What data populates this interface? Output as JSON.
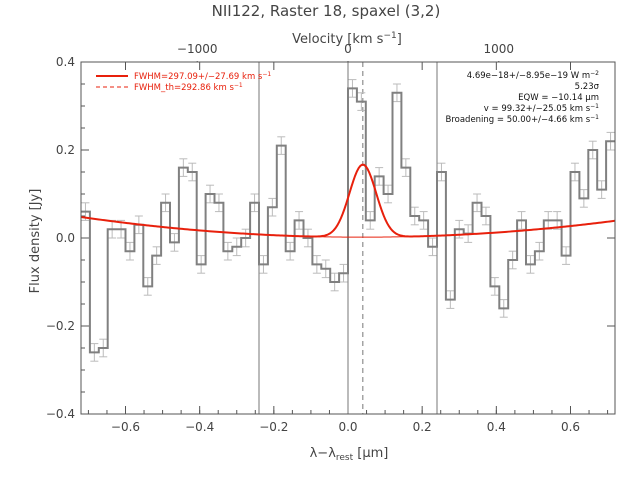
{
  "chart_data": {
    "type": "line",
    "title": "NII122, Raster 18, spaxel (3,2)",
    "xlabel": "λ-λ_rest [μm]",
    "ylabel": "Flux density [Jy]",
    "top_axis_label": "Velocity [km s^-1]",
    "xlim": [
      -0.72,
      0.72
    ],
    "ylim": [
      -0.4,
      0.4
    ],
    "x_ticks": [
      -0.6,
      -0.4,
      -0.2,
      0.0,
      0.2,
      0.4,
      0.6
    ],
    "x_tick_labels": [
      "−0.6",
      "−0.4",
      "−0.2",
      "0.0",
      "0.2",
      "0.4",
      "0.6"
    ],
    "y_ticks": [
      -0.4,
      -0.2,
      0.0,
      0.2,
      0.4
    ],
    "y_tick_labels": [
      "−0.4",
      "−0.2",
      "0.0",
      "0.2",
      "0.4"
    ],
    "top_ticks": [
      -1000,
      0,
      1000
    ],
    "top_tick_labels": [
      "−1000",
      "0",
      "1000"
    ],
    "vertical_lines_solid": [
      -0.24,
      0.0,
      0.24
    ],
    "vertical_line_dashed": 0.04,
    "legend": {
      "position": "top-left",
      "items": [
        {
          "label": "FWHM=297.09+/−27.69 km s^-1",
          "style": "solid"
        },
        {
          "label": "FWHM_th=292.86 km s^-1",
          "style": "dashed"
        }
      ]
    },
    "annotations": [
      "4.69e−18+/−8.95e−19 W m^-2",
      "5.23σ",
      "EQW = −10.14 μm",
      "v = 99.32+/−25.05 km s^-1",
      "Broadening = 50.00+/−4.66 km s^-1"
    ],
    "spectrum": {
      "x": [
        -0.72,
        -0.696,
        -0.672,
        -0.648,
        -0.624,
        -0.6,
        -0.576,
        -0.552,
        -0.528,
        -0.504,
        -0.48,
        -0.456,
        -0.432,
        -0.408,
        -0.384,
        -0.36,
        -0.336,
        -0.312,
        -0.288,
        -0.264,
        -0.24,
        -0.216,
        -0.192,
        -0.168,
        -0.144,
        -0.12,
        -0.096,
        -0.072,
        -0.048,
        -0.024,
        0.0,
        0.024,
        0.048,
        0.072,
        0.096,
        0.12,
        0.144,
        0.168,
        0.192,
        0.216,
        0.24,
        0.264,
        0.288,
        0.312,
        0.336,
        0.36,
        0.384,
        0.408,
        0.432,
        0.456,
        0.48,
        0.504,
        0.528,
        0.552,
        0.576,
        0.6,
        0.624,
        0.648,
        0.672,
        0.696
      ],
      "y": [
        0.06,
        -0.26,
        -0.25,
        0.02,
        0.02,
        -0.03,
        0.03,
        -0.11,
        -0.04,
        0.08,
        -0.01,
        0.16,
        0.15,
        -0.06,
        0.1,
        0.08,
        -0.03,
        -0.02,
        0.0,
        0.08,
        -0.06,
        0.07,
        0.21,
        -0.03,
        0.04,
        0.0,
        -0.06,
        -0.07,
        -0.1,
        -0.08,
        0.34,
        0.31,
        0.04,
        0.14,
        0.1,
        0.33,
        0.16,
        0.05,
        0.04,
        -0.02,
        0.15,
        -0.14,
        0.02,
        0.01,
        0.08,
        0.05,
        -0.11,
        -0.16,
        -0.05,
        0.04,
        -0.06,
        -0.03,
        0.04,
        0.04,
        -0.04,
        0.15,
        0.09,
        0.2,
        0.11,
        0.22
      ],
      "err": 0.02
    },
    "baseline": {
      "x0": 0.0,
      "a": 0.002,
      "b": -0.006,
      "c": 0.08
    },
    "gaussian": {
      "center": 0.04,
      "amplitude": 0.165,
      "sigma": 0.036
    }
  }
}
